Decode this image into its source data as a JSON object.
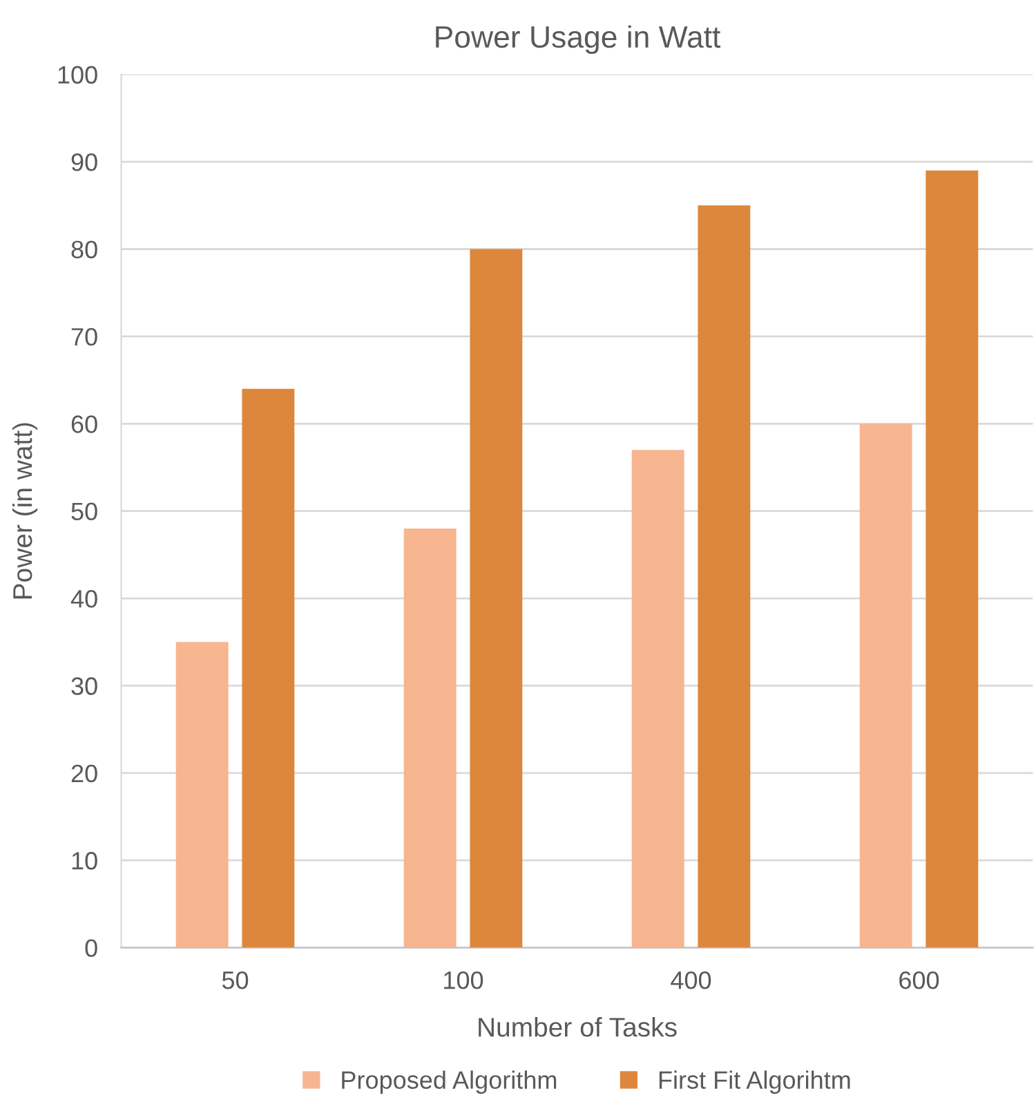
{
  "chart_data": {
    "type": "bar",
    "title": "Power Usage in Watt",
    "xlabel": "Number of Tasks",
    "ylabel": "Power (in watt)",
    "categories": [
      "50",
      "100",
      "400",
      "600"
    ],
    "series": [
      {
        "name": "Proposed Algorithm",
        "color": "#f7b590",
        "values": [
          35,
          48,
          57,
          60
        ]
      },
      {
        "name": "First Fit Algorihtm",
        "color": "#dd873c",
        "values": [
          64,
          80,
          85,
          89
        ]
      }
    ],
    "ylim": [
      0,
      100
    ],
    "yticks": [
      0,
      10,
      20,
      30,
      40,
      50,
      60,
      70,
      80,
      90,
      100
    ],
    "grid": "y",
    "legend": "bottom"
  }
}
